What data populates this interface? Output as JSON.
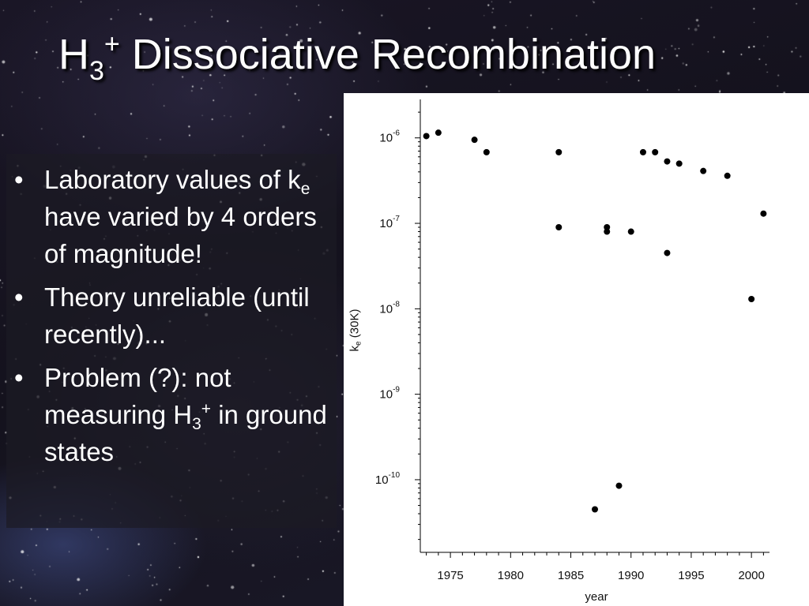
{
  "slide": {
    "title_main": "H",
    "title_sub": "3",
    "title_sup": "+",
    "title_rest": " Dissociative Recombination",
    "bullets": [
      {
        "marker": "•",
        "parts": {
          "a": "Laboratory values of k",
          "sub": "e",
          "b": " have varied by 4 orders of magnitude!"
        }
      },
      {
        "marker": "•",
        "parts": {
          "a": "Theory unreliable (until recently)..."
        }
      },
      {
        "marker": "•",
        "parts": {
          "a": "Problem (?): not measuring H",
          "sub": "3",
          "sup": "+",
          "b": " in ground states"
        }
      }
    ]
  },
  "chart_data": {
    "type": "scatter",
    "xlabel": "year",
    "ylabel_main": "k",
    "ylabel_sub": "e",
    "ylabel_rest": " (30K)",
    "y_scale": "log",
    "xlim": [
      1972.5,
      2001.5
    ],
    "ylim_log10": [
      -10.85,
      -5.55
    ],
    "x_ticks": [
      "1975",
      "1980",
      "1985",
      "1990",
      "1995",
      "2000"
    ],
    "y_ticks": [
      {
        "base": "10",
        "exp": "-6",
        "value": 1e-06
      },
      {
        "base": "10",
        "exp": "-7",
        "value": 1e-07
      },
      {
        "base": "10",
        "exp": "-8",
        "value": 1e-08
      },
      {
        "base": "10",
        "exp": "-9",
        "value": 1e-09
      },
      {
        "base": "10",
        "exp": "-10",
        "value": 1e-10
      }
    ],
    "grid": false,
    "marker_color": "#000000",
    "points": [
      {
        "x": 1973,
        "y": 1.05e-06
      },
      {
        "x": 1974,
        "y": 1.15e-06
      },
      {
        "x": 1977,
        "y": 9.5e-07
      },
      {
        "x": 1978,
        "y": 6.8e-07
      },
      {
        "x": 1984,
        "y": 6.8e-07
      },
      {
        "x": 1984,
        "y": 9e-08
      },
      {
        "x": 1987,
        "y": 4.5e-11
      },
      {
        "x": 1988,
        "y": 9e-08
      },
      {
        "x": 1988,
        "y": 8e-08
      },
      {
        "x": 1989,
        "y": 8.5e-11
      },
      {
        "x": 1990,
        "y": 8e-08
      },
      {
        "x": 1991,
        "y": 6.8e-07
      },
      {
        "x": 1992,
        "y": 6.8e-07
      },
      {
        "x": 1993,
        "y": 5.3e-07
      },
      {
        "x": 1993,
        "y": 4.5e-08
      },
      {
        "x": 1994,
        "y": 5e-07
      },
      {
        "x": 1996,
        "y": 4.1e-07
      },
      {
        "x": 1998,
        "y": 3.6e-07
      },
      {
        "x": 2000,
        "y": 1.3e-08
      },
      {
        "x": 2001,
        "y": 1.3e-07
      }
    ]
  }
}
